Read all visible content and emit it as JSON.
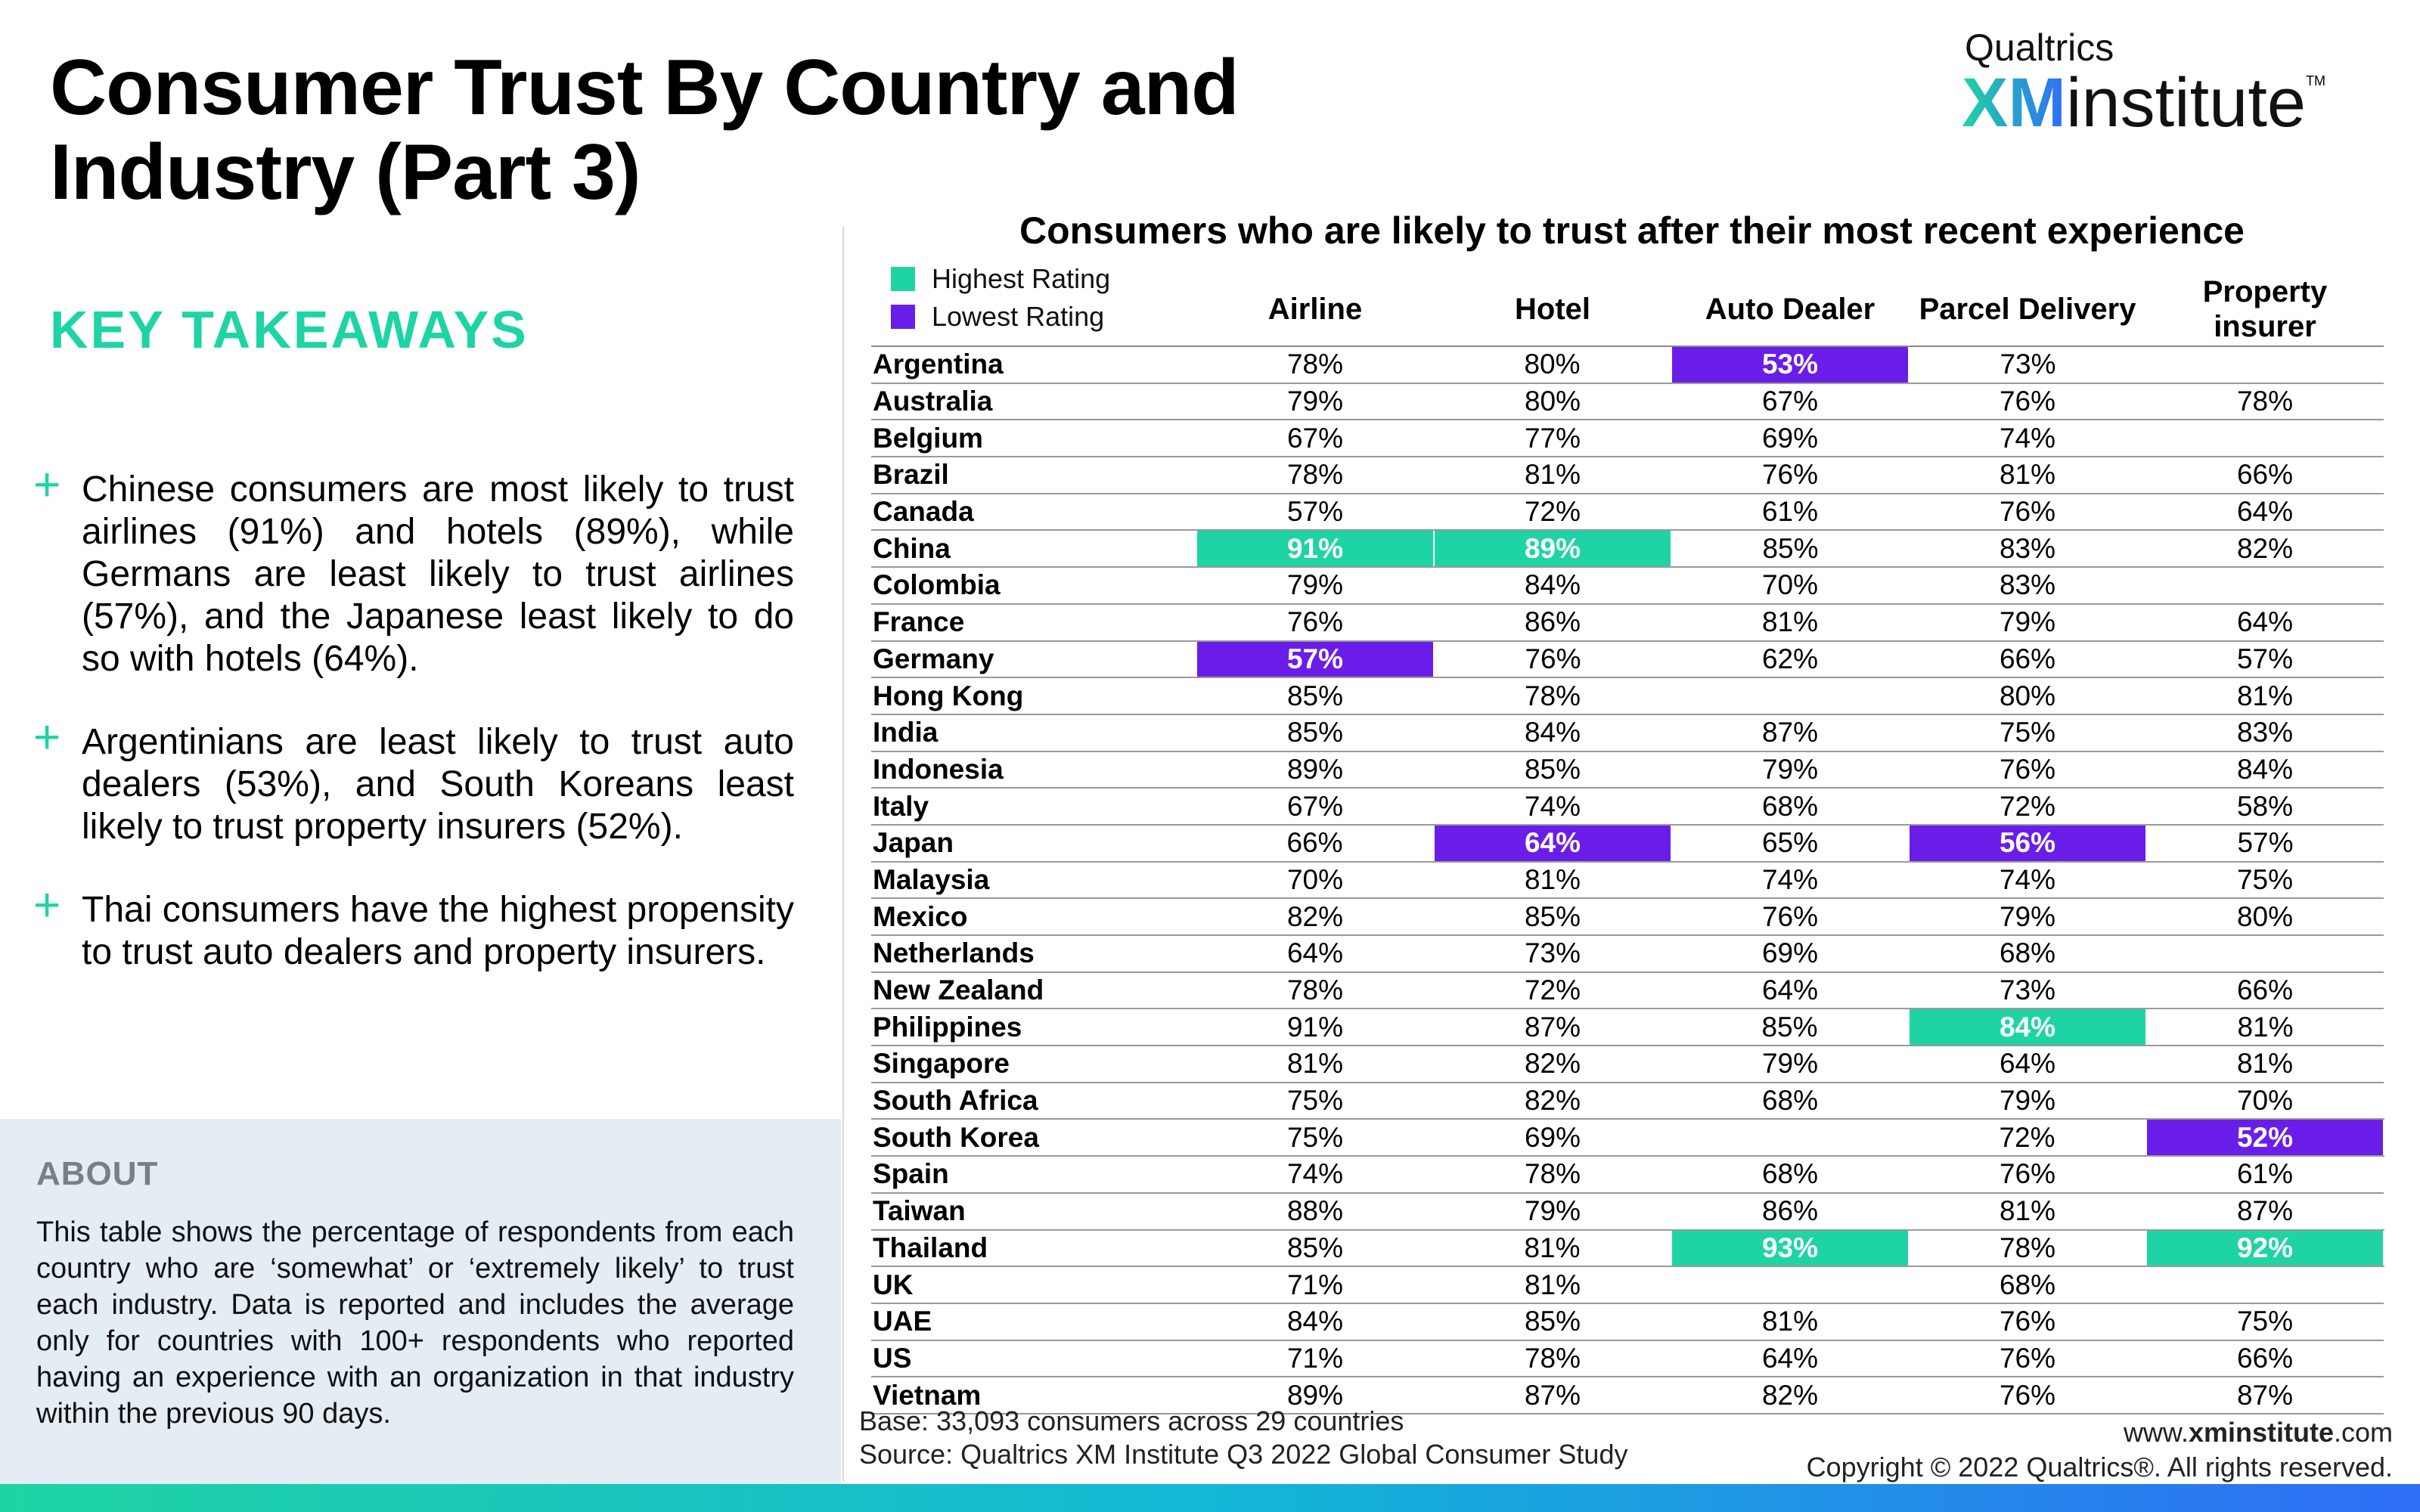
{
  "title": "Consumer Trust By Country and Industry (Part 3)",
  "logo": {
    "top": "Qualtrics",
    "xm": "XM",
    "institute": "institute",
    "tm": "TM"
  },
  "key_takeaways": {
    "heading": "KEY TAKEAWAYS",
    "items": [
      "Chinese consumers are most likely to trust airlines (91%) and hotels (89%), while Germans are least likely to trust airlines (57%), and the Japanese least likely to do so with hotels (64%).",
      "Argentinians are least likely to trust auto dealers (53%), and South Koreans least likely to trust property insurers (52%).",
      "Thai consumers have the highest propensity to trust auto dealers and property insurers."
    ]
  },
  "about": {
    "heading": "ABOUT",
    "text": "This table shows the percentage of respondents from each country who are ‘somewhat’ or ‘extremely likely’ to trust each industry. Data is reported and includes the average only for countries with 100+ respondents who reported having an experience with an organization in that industry within the previous 90 days."
  },
  "colors": {
    "highest": "#1fd4a4",
    "lowest": "#6a1de8"
  },
  "chart_data": {
    "type": "table",
    "title": "Consumers who are likely to trust after their most recent experience",
    "legend": [
      "Highest Rating",
      "Lowest Rating"
    ],
    "columns": [
      "Airline",
      "Hotel",
      "Auto Dealer",
      "Parcel Delivery",
      "Property insurer"
    ],
    "rows": [
      {
        "country": "Argentina",
        "values": [
          "78%",
          "80%",
          "53%",
          "73%",
          ""
        ]
      },
      {
        "country": "Australia",
        "values": [
          "79%",
          "80%",
          "67%",
          "76%",
          "78%"
        ]
      },
      {
        "country": "Belgium",
        "values": [
          "67%",
          "77%",
          "69%",
          "74%",
          ""
        ]
      },
      {
        "country": "Brazil",
        "values": [
          "78%",
          "81%",
          "76%",
          "81%",
          "66%"
        ]
      },
      {
        "country": "Canada",
        "values": [
          "57%",
          "72%",
          "61%",
          "76%",
          "64%"
        ]
      },
      {
        "country": "China",
        "values": [
          "91%",
          "89%",
          "85%",
          "83%",
          "82%"
        ]
      },
      {
        "country": "Colombia",
        "values": [
          "79%",
          "84%",
          "70%",
          "83%",
          ""
        ]
      },
      {
        "country": "France",
        "values": [
          "76%",
          "86%",
          "81%",
          "79%",
          "64%"
        ]
      },
      {
        "country": "Germany",
        "values": [
          "57%",
          "76%",
          "62%",
          "66%",
          "57%"
        ]
      },
      {
        "country": "Hong Kong",
        "values": [
          "85%",
          "78%",
          "",
          "80%",
          "81%"
        ]
      },
      {
        "country": "India",
        "values": [
          "85%",
          "84%",
          "87%",
          "75%",
          "83%"
        ]
      },
      {
        "country": "Indonesia",
        "values": [
          "89%",
          "85%",
          "79%",
          "76%",
          "84%"
        ]
      },
      {
        "country": "Italy",
        "values": [
          "67%",
          "74%",
          "68%",
          "72%",
          "58%"
        ]
      },
      {
        "country": "Japan",
        "values": [
          "66%",
          "64%",
          "65%",
          "56%",
          "57%"
        ]
      },
      {
        "country": "Malaysia",
        "values": [
          "70%",
          "81%",
          "74%",
          "74%",
          "75%"
        ]
      },
      {
        "country": "Mexico",
        "values": [
          "82%",
          "85%",
          "76%",
          "79%",
          "80%"
        ]
      },
      {
        "country": "Netherlands",
        "values": [
          "64%",
          "73%",
          "69%",
          "68%",
          ""
        ]
      },
      {
        "country": "New Zealand",
        "values": [
          "78%",
          "72%",
          "64%",
          "73%",
          "66%"
        ]
      },
      {
        "country": "Philippines",
        "values": [
          "91%",
          "87%",
          "85%",
          "84%",
          "81%"
        ]
      },
      {
        "country": "Singapore",
        "values": [
          "81%",
          "82%",
          "79%",
          "64%",
          "81%"
        ]
      },
      {
        "country": "South Africa",
        "values": [
          "75%",
          "82%",
          "68%",
          "79%",
          "70%"
        ]
      },
      {
        "country": "South Korea",
        "values": [
          "75%",
          "69%",
          "",
          "72%",
          "52%"
        ]
      },
      {
        "country": "Spain",
        "values": [
          "74%",
          "78%",
          "68%",
          "76%",
          "61%"
        ]
      },
      {
        "country": "Taiwan",
        "values": [
          "88%",
          "79%",
          "86%",
          "81%",
          "87%"
        ]
      },
      {
        "country": "Thailand",
        "values": [
          "85%",
          "81%",
          "93%",
          "78%",
          "92%"
        ]
      },
      {
        "country": "UK",
        "values": [
          "71%",
          "81%",
          "",
          "68%",
          ""
        ]
      },
      {
        "country": "UAE",
        "values": [
          "84%",
          "85%",
          "81%",
          "76%",
          "75%"
        ]
      },
      {
        "country": "US",
        "values": [
          "71%",
          "78%",
          "64%",
          "76%",
          "66%"
        ]
      },
      {
        "country": "Vietnam",
        "values": [
          "89%",
          "87%",
          "82%",
          "76%",
          "87%"
        ]
      }
    ],
    "highlights": [
      {
        "row": 0,
        "col": 2,
        "kind": "lowest"
      },
      {
        "row": 5,
        "col": 0,
        "kind": "highest"
      },
      {
        "row": 5,
        "col": 1,
        "kind": "highest"
      },
      {
        "row": 8,
        "col": 0,
        "kind": "lowest"
      },
      {
        "row": 13,
        "col": 1,
        "kind": "lowest"
      },
      {
        "row": 13,
        "col": 3,
        "kind": "lowest"
      },
      {
        "row": 18,
        "col": 3,
        "kind": "highest"
      },
      {
        "row": 21,
        "col": 4,
        "kind": "lowest"
      },
      {
        "row": 24,
        "col": 2,
        "kind": "highest"
      },
      {
        "row": 24,
        "col": 4,
        "kind": "highest"
      }
    ]
  },
  "footer": {
    "base": "Base: 33,093 consumers across 29 countries",
    "source": "Source: Qualtrics XM Institute Q3 2022 Global Consumer Study",
    "url_prefix": "www.",
    "url_bold": "xminstitute",
    "url_suffix": ".com",
    "copyright": "Copyright © 2022 Qualtrics®. All rights reserved."
  }
}
